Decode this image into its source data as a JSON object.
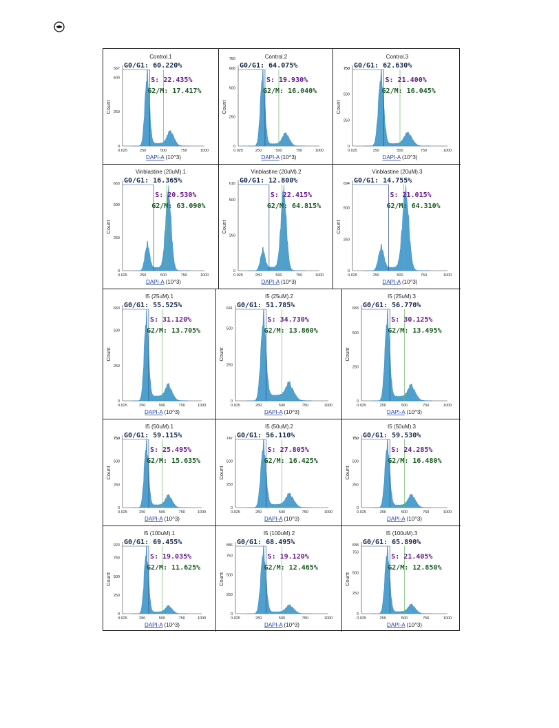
{
  "panels": [
    {
      "title": "Control.1",
      "ymax": 567,
      "yticks": [
        0,
        250,
        500
      ],
      "g0g1": "60.220%",
      "s": "22.435%",
      "g2m": "17.417%"
    },
    {
      "title": "Control.2",
      "ymax": 668,
      "yticks": [
        0,
        250,
        500,
        750
      ],
      "g0g1": "64.075%",
      "s": "19.930%",
      "g2m": "16.040%"
    },
    {
      "title": "Control.3",
      "ymax": 750,
      "yticks": [
        0,
        250,
        500,
        750
      ],
      "g0g1": "62.630%",
      "s": "21.400%",
      "g2m": "16.045%"
    },
    {
      "title": "Vinblastine (20uM).1",
      "ymax": 663,
      "yticks": [
        0,
        250,
        500
      ],
      "g0g1": "16.365%",
      "s": "20.530%",
      "g2m": "63.090%"
    },
    {
      "title": "Vinblastine (20uM).2",
      "ymax": 616,
      "yticks": [
        0,
        250,
        500
      ],
      "g0g1": "12.800%",
      "s": "22.415%",
      "g2m": "64.815%"
    },
    {
      "title": "Vinblastine (20uM).3",
      "ymax": 694,
      "yticks": [
        0,
        250,
        500
      ],
      "g0g1": "14.755%",
      "s": "21.015%",
      "g2m": "64.310%"
    },
    {
      "title": "I5 (25uM).1",
      "ymax": 660,
      "yticks": [
        0,
        250,
        500
      ],
      "g0g1": "55.525%",
      "s": "31.120%",
      "g2m": "13.705%"
    },
    {
      "title": "I5 (25uM).2",
      "ymax": 641,
      "yticks": [
        0,
        250,
        500
      ],
      "g0g1": "51.785%",
      "s": "34.730%",
      "g2m": "13.860%"
    },
    {
      "title": "I5 (25uM).3",
      "ymax": 683,
      "yticks": [
        0,
        250,
        500
      ],
      "g0g1": "56.770%",
      "s": "30.125%",
      "g2m": "13.495%"
    },
    {
      "title": "I5 (50uM).1",
      "ymax": 750,
      "yticks": [
        0,
        250,
        500,
        750
      ],
      "g0g1": "59.115%",
      "s": "25.495%",
      "g2m": "15.635%"
    },
    {
      "title": "I5 (50uM).2",
      "ymax": 747,
      "yticks": [
        0,
        250,
        500
      ],
      "g0g1": "56.110%",
      "s": "27.805%",
      "g2m": "16.425%"
    },
    {
      "title": "I5 (50uM).3",
      "ymax": 750,
      "yticks": [
        0,
        250,
        500,
        750
      ],
      "g0g1": "59.530%",
      "s": "24.285%",
      "g2m": "16.480%"
    },
    {
      "title": "I5 (100uM).1",
      "ymax": 923,
      "yticks": [
        0,
        250,
        500,
        750
      ],
      "g0g1": "69.455%",
      "s": "19.035%",
      "g2m": "11.625%"
    },
    {
      "title": "I5 (100uM).2",
      "ymax": 886,
      "yticks": [
        0,
        250,
        500,
        750
      ],
      "g0g1": "68.495%",
      "s": "19.120%",
      "g2m": "12.465%"
    },
    {
      "title": "I5 (100uM).3",
      "ymax": 838,
      "yticks": [
        0,
        250,
        500,
        750
      ],
      "g0g1": "65.890%",
      "s": "21.405%",
      "g2m": "12.850%"
    }
  ],
  "labels": {
    "g0g1_prefix": "G0/G1: ",
    "s_prefix": "S: ",
    "g2m_prefix": "G2/M: ",
    "ylabel": "Count",
    "xlabel_link": "DAPI-A",
    "xlabel_unit": " (10^3)",
    "xticks": [
      "0.025",
      "250",
      "500",
      "750",
      "1000"
    ]
  },
  "colors": {
    "histogram": "#4f9fcf",
    "g0_text": "#142848",
    "s_text": "#6a1a8c",
    "g2_text": "#1b5c22",
    "gate_line": "#2a4a8a"
  },
  "corner_icon": "circled-minus-icon",
  "chart_data": [
    {
      "type": "histogram",
      "title": "Control.1",
      "xlabel": "DAPI-A (10^3)",
      "ylabel": "Count",
      "xlim": [
        0.025,
        1000
      ],
      "ylim": [
        0,
        567
      ],
      "phases": {
        "G0/G1": 60.22,
        "S": 22.435,
        "G2/M": 17.417
      }
    },
    {
      "type": "histogram",
      "title": "Control.2",
      "xlabel": "DAPI-A (10^3)",
      "ylabel": "Count",
      "xlim": [
        0.025,
        1000
      ],
      "ylim": [
        0,
        668
      ],
      "phases": {
        "G0/G1": 64.075,
        "S": 19.93,
        "G2/M": 16.04
      }
    },
    {
      "type": "histogram",
      "title": "Control.3",
      "xlabel": "DAPI-A (10^3)",
      "ylabel": "Count",
      "xlim": [
        0.025,
        1000
      ],
      "ylim": [
        0,
        750
      ],
      "phases": {
        "G0/G1": 62.63,
        "S": 21.4,
        "G2/M": 16.045
      }
    },
    {
      "type": "histogram",
      "title": "Vinblastine (20uM).1",
      "xlabel": "DAPI-A (10^3)",
      "ylabel": "Count",
      "xlim": [
        0.025,
        1000
      ],
      "ylim": [
        0,
        663
      ],
      "phases": {
        "G0/G1": 16.365,
        "S": 20.53,
        "G2/M": 63.09
      }
    },
    {
      "type": "histogram",
      "title": "Vinblastine (20uM).2",
      "xlabel": "DAPI-A (10^3)",
      "ylabel": "Count",
      "xlim": [
        0.025,
        1000
      ],
      "ylim": [
        0,
        616
      ],
      "phases": {
        "G0/G1": 12.8,
        "S": 22.415,
        "G2/M": 64.815
      }
    },
    {
      "type": "histogram",
      "title": "Vinblastine (20uM).3",
      "xlabel": "DAPI-A (10^3)",
      "ylabel": "Count",
      "xlim": [
        0.025,
        1000
      ],
      "ylim": [
        0,
        694
      ],
      "phases": {
        "G0/G1": 14.755,
        "S": 21.015,
        "G2/M": 64.31
      }
    },
    {
      "type": "histogram",
      "title": "I5 (25uM).1",
      "xlabel": "DAPI-A (10^3)",
      "ylabel": "Count",
      "xlim": [
        0.025,
        1000
      ],
      "ylim": [
        0,
        660
      ],
      "phases": {
        "G0/G1": 55.525,
        "S": 31.12,
        "G2/M": 13.705
      }
    },
    {
      "type": "histogram",
      "title": "I5 (25uM).2",
      "xlabel": "DAPI-A (10^3)",
      "ylabel": "Count",
      "xlim": [
        0.025,
        1000
      ],
      "ylim": [
        0,
        641
      ],
      "phases": {
        "G0/G1": 51.785,
        "S": 34.73,
        "G2/M": 13.86
      }
    },
    {
      "type": "histogram",
      "title": "I5 (25uM).3",
      "xlabel": "DAPI-A (10^3)",
      "ylabel": "Count",
      "xlim": [
        0.025,
        1000
      ],
      "ylim": [
        0,
        683
      ],
      "phases": {
        "G0/G1": 56.77,
        "S": 30.125,
        "G2/M": 13.495
      }
    },
    {
      "type": "histogram",
      "title": "I5 (50uM).1",
      "xlabel": "DAPI-A (10^3)",
      "ylabel": "Count",
      "xlim": [
        0.025,
        1000
      ],
      "ylim": [
        0,
        750
      ],
      "phases": {
        "G0/G1": 59.115,
        "S": 25.495,
        "G2/M": 15.635
      }
    },
    {
      "type": "histogram",
      "title": "I5 (50uM).2",
      "xlabel": "DAPI-A (10^3)",
      "ylabel": "Count",
      "xlim": [
        0.025,
        1000
      ],
      "ylim": [
        0,
        747
      ],
      "phases": {
        "G0/G1": 56.11,
        "S": 27.805,
        "G2/M": 16.425
      }
    },
    {
      "type": "histogram",
      "title": "I5 (50uM).3",
      "xlabel": "DAPI-A (10^3)",
      "ylabel": "Count",
      "xlim": [
        0.025,
        1000
      ],
      "ylim": [
        0,
        750
      ],
      "phases": {
        "G0/G1": 59.53,
        "S": 24.285,
        "G2/M": 16.48
      }
    },
    {
      "type": "histogram",
      "title": "I5 (100uM).1",
      "xlabel": "DAPI-A (10^3)",
      "ylabel": "Count",
      "xlim": [
        0.025,
        1000
      ],
      "ylim": [
        0,
        923
      ],
      "phases": {
        "G0/G1": 69.455,
        "S": 19.035,
        "G2/M": 11.625
      }
    },
    {
      "type": "histogram",
      "title": "I5 (100uM).2",
      "xlabel": "DAPI-A (10^3)",
      "ylabel": "Count",
      "xlim": [
        0.025,
        1000
      ],
      "ylim": [
        0,
        886
      ],
      "phases": {
        "G0/G1": 68.495,
        "S": 19.12,
        "G2/M": 12.465
      }
    },
    {
      "type": "histogram",
      "title": "I5 (100uM).3",
      "xlabel": "DAPI-A (10^3)",
      "ylabel": "Count",
      "xlim": [
        0.025,
        1000
      ],
      "ylim": [
        0,
        838
      ],
      "phases": {
        "G0/G1": 65.89,
        "S": 21.405,
        "G2/M": 12.85
      }
    }
  ]
}
